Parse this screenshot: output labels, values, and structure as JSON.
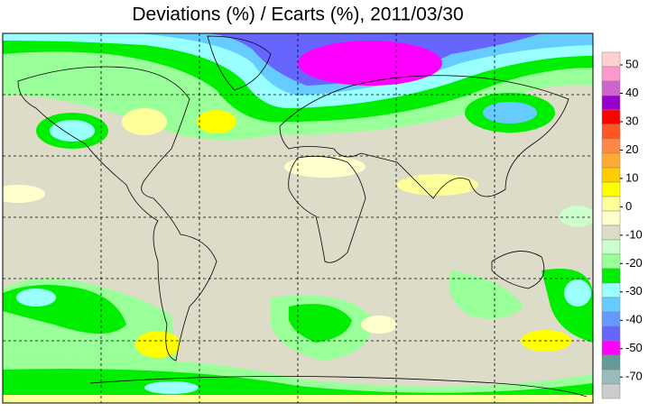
{
  "header": {
    "title": "Deviations (%) / Ecarts (%), 2011/03/30"
  },
  "colorbar": {
    "ticks": [
      50,
      40,
      30,
      20,
      10,
      0,
      -10,
      -20,
      -30,
      -40,
      -50,
      -70
    ],
    "colors": [
      "#ffd0d0",
      "#ff99cc",
      "#cc66cc",
      "#9900cc",
      "#ff0000",
      "#ff5522",
      "#ff8844",
      "#ffaa33",
      "#ffcc00",
      "#ffff00",
      "#ffff99",
      "#ffffcc",
      "#dcdcc8",
      "#ccffcc",
      "#99ff99",
      "#00ee00",
      "#99ffff",
      "#66ccff",
      "#6699ff",
      "#6666ff",
      "#ff00ff",
      "#669999",
      "#99bbbb",
      "#cccccc"
    ]
  }
}
